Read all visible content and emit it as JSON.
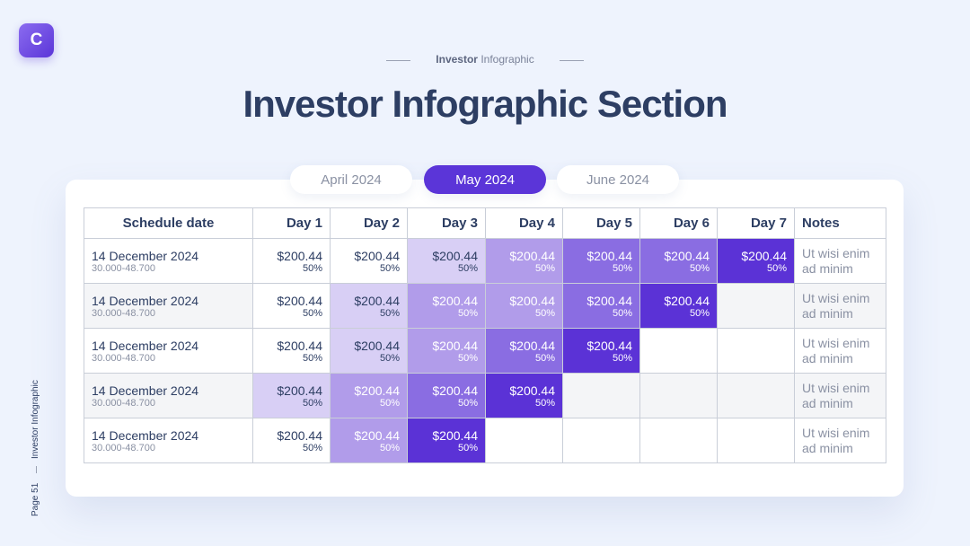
{
  "logo": "C",
  "header": {
    "kicker_bold": "Investor",
    "kicker_rest": "Infographic",
    "title": "Investor Infographic Section"
  },
  "tabs": {
    "items": [
      "April 2024",
      "May 2024",
      "June 2024"
    ],
    "active": 1
  },
  "table": {
    "headers": [
      "Schedule date",
      "Day 1",
      "Day 2",
      "Day 3",
      "Day 4",
      "Day 5",
      "Day 6",
      "Day 7",
      "Notes"
    ],
    "rows": [
      {
        "date": "14 December 2024",
        "range": "30.000-48.700",
        "notes": "Ut wisi enim ad minim",
        "cells": [
          {
            "amount": "$200.44",
            "percent": "50%",
            "color": "#ffffff"
          },
          {
            "amount": "$200.44",
            "percent": "50%",
            "color": "#ffffff"
          },
          {
            "amount": "$200.44",
            "percent": "50%",
            "color": "#d8cff5"
          },
          {
            "amount": "$200.44",
            "percent": "50%",
            "color": "#b19cea"
          },
          {
            "amount": "$200.44",
            "percent": "50%",
            "color": "#8a6de2"
          },
          {
            "amount": "$200.44",
            "percent": "50%",
            "color": "#8a6de2"
          },
          {
            "amount": "$200.44",
            "percent": "50%",
            "color": "#5b32d6"
          }
        ]
      },
      {
        "date": "14 December 2024",
        "range": "30.000-48.700",
        "notes": "Ut wisi enim ad minim",
        "cells": [
          {
            "amount": "$200.44",
            "percent": "50%",
            "color": "#ffffff"
          },
          {
            "amount": "$200.44",
            "percent": "50%",
            "color": "#d8cff5"
          },
          {
            "amount": "$200.44",
            "percent": "50%",
            "color": "#b19cea"
          },
          {
            "amount": "$200.44",
            "percent": "50%",
            "color": "#b19cea"
          },
          {
            "amount": "$200.44",
            "percent": "50%",
            "color": "#8a6de2"
          },
          {
            "amount": "$200.44",
            "percent": "50%",
            "color": "#5b32d6"
          },
          null
        ]
      },
      {
        "date": "14 December 2024",
        "range": "30.000-48.700",
        "notes": "Ut wisi enim ad minim",
        "cells": [
          {
            "amount": "$200.44",
            "percent": "50%",
            "color": "#ffffff"
          },
          {
            "amount": "$200.44",
            "percent": "50%",
            "color": "#d8cff5"
          },
          {
            "amount": "$200.44",
            "percent": "50%",
            "color": "#b19cea"
          },
          {
            "amount": "$200.44",
            "percent": "50%",
            "color": "#8a6de2"
          },
          {
            "amount": "$200.44",
            "percent": "50%",
            "color": "#5b32d6"
          },
          null,
          null
        ]
      },
      {
        "date": "14 December 2024",
        "range": "30.000-48.700",
        "notes": "Ut wisi enim ad minim",
        "cells": [
          {
            "amount": "$200.44",
            "percent": "50%",
            "color": "#d8cff5"
          },
          {
            "amount": "$200.44",
            "percent": "50%",
            "color": "#b19cea"
          },
          {
            "amount": "$200.44",
            "percent": "50%",
            "color": "#8a6de2"
          },
          {
            "amount": "$200.44",
            "percent": "50%",
            "color": "#5b32d6"
          },
          null,
          null,
          null
        ]
      },
      {
        "date": "14 December 2024",
        "range": "30.000-48.700",
        "notes": "Ut wisi enim ad minim",
        "cells": [
          {
            "amount": "$200.44",
            "percent": "50%",
            "color": "#ffffff"
          },
          {
            "amount": "$200.44",
            "percent": "50%",
            "color": "#b19cea"
          },
          {
            "amount": "$200.44",
            "percent": "50%",
            "color": "#5b32d6"
          },
          null,
          null,
          null,
          null
        ]
      }
    ]
  },
  "sidebar": {
    "label": "Investor Infographic",
    "page": "Page 51"
  }
}
